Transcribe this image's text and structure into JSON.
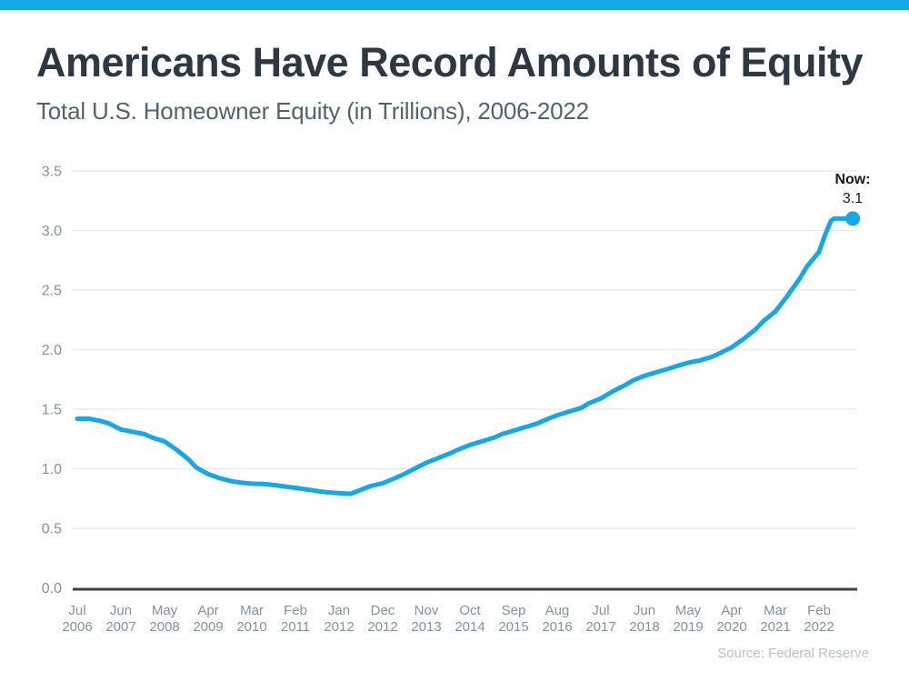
{
  "chart_data": {
    "type": "line",
    "title": "Americans Have Record Amounts of Equity",
    "subtitle": "Total U.S. Homeowner Equity (in Trillions), 2006-2022",
    "source": "Source: Federal Reserve",
    "grid": "horizontal",
    "legend": "none",
    "ylim": [
      0,
      3.5
    ],
    "yticks": [
      0.0,
      0.5,
      1.0,
      1.5,
      2.0,
      2.5,
      3.0,
      3.5
    ],
    "x_unit": "months since Jul 2006",
    "x_ticks": [
      {
        "month": "Jul",
        "year": "2006",
        "m": 0
      },
      {
        "month": "Jun",
        "year": "2007",
        "m": 11
      },
      {
        "month": "May",
        "year": "2008",
        "m": 22
      },
      {
        "month": "Apr",
        "year": "2009",
        "m": 33
      },
      {
        "month": "Mar",
        "year": "2010",
        "m": 44
      },
      {
        "month": "Feb",
        "year": "2011",
        "m": 55
      },
      {
        "month": "Jan",
        "year": "2012",
        "m": 66
      },
      {
        "month": "Dec",
        "year": "2012",
        "m": 77
      },
      {
        "month": "Nov",
        "year": "2013",
        "m": 88
      },
      {
        "month": "Oct",
        "year": "2014",
        "m": 99
      },
      {
        "month": "Sep",
        "year": "2015",
        "m": 110
      },
      {
        "month": "Aug",
        "year": "2016",
        "m": 121
      },
      {
        "month": "Jul",
        "year": "2017",
        "m": 132
      },
      {
        "month": "Jun",
        "year": "2018",
        "m": 143
      },
      {
        "month": "May",
        "year": "2019",
        "m": 154
      },
      {
        "month": "Apr",
        "year": "2020",
        "m": 165
      },
      {
        "month": "Mar",
        "year": "2021",
        "m": 176
      },
      {
        "month": "Feb",
        "year": "2022",
        "m": 187
      }
    ],
    "series": [
      {
        "name": "Total U.S. Homeowner Equity (Trillions USD)",
        "points": [
          [
            0,
            1.42
          ],
          [
            3,
            1.42
          ],
          [
            6,
            1.4
          ],
          [
            8,
            1.38
          ],
          [
            11,
            1.33
          ],
          [
            14,
            1.31
          ],
          [
            17,
            1.29
          ],
          [
            19,
            1.26
          ],
          [
            22,
            1.23
          ],
          [
            25,
            1.16
          ],
          [
            28,
            1.08
          ],
          [
            30,
            1.01
          ],
          [
            33,
            0.955
          ],
          [
            36,
            0.92
          ],
          [
            39,
            0.895
          ],
          [
            41,
            0.885
          ],
          [
            44,
            0.875
          ],
          [
            47,
            0.872
          ],
          [
            50,
            0.862
          ],
          [
            52,
            0.852
          ],
          [
            55,
            0.84
          ],
          [
            58,
            0.825
          ],
          [
            61,
            0.81
          ],
          [
            63,
            0.803
          ],
          [
            66,
            0.795
          ],
          [
            69,
            0.79
          ],
          [
            72,
            0.83
          ],
          [
            74,
            0.855
          ],
          [
            77,
            0.878
          ],
          [
            80,
            0.92
          ],
          [
            83,
            0.965
          ],
          [
            85,
            1.0
          ],
          [
            88,
            1.05
          ],
          [
            91,
            1.09
          ],
          [
            94,
            1.13
          ],
          [
            96,
            1.16
          ],
          [
            99,
            1.2
          ],
          [
            102,
            1.23
          ],
          [
            105,
            1.26
          ],
          [
            107,
            1.29
          ],
          [
            110,
            1.32
          ],
          [
            113,
            1.35
          ],
          [
            116,
            1.38
          ],
          [
            118,
            1.41
          ],
          [
            121,
            1.45
          ],
          [
            124,
            1.48
          ],
          [
            127,
            1.51
          ],
          [
            129,
            1.55
          ],
          [
            132,
            1.59
          ],
          [
            135,
            1.65
          ],
          [
            138,
            1.7
          ],
          [
            140,
            1.74
          ],
          [
            143,
            1.78
          ],
          [
            146,
            1.81
          ],
          [
            149,
            1.84
          ],
          [
            151,
            1.86
          ],
          [
            154,
            1.89
          ],
          [
            157,
            1.91
          ],
          [
            160,
            1.94
          ],
          [
            162,
            1.97
          ],
          [
            165,
            2.02
          ],
          [
            168,
            2.09
          ],
          [
            171,
            2.17
          ],
          [
            173,
            2.24
          ],
          [
            176,
            2.32
          ],
          [
            179,
            2.45
          ],
          [
            182,
            2.59
          ],
          [
            184,
            2.7
          ],
          [
            187,
            2.82
          ],
          [
            188.5,
            2.96
          ],
          [
            190,
            3.08
          ],
          [
            190.8,
            3.1
          ],
          [
            195.5,
            3.1
          ]
        ]
      }
    ],
    "annotation": {
      "label": "Now:",
      "value": "3.1"
    },
    "colors": {
      "accent_bar": "#14A8E8",
      "line": "#14A8E8",
      "grid": "#E7E8EA",
      "axis": "#37424C",
      "tick_label": "#8091A2",
      "title": "#2C3943",
      "subtitle": "#4F646E",
      "annotation": "#17191B",
      "source": "#B7C2CC"
    }
  }
}
